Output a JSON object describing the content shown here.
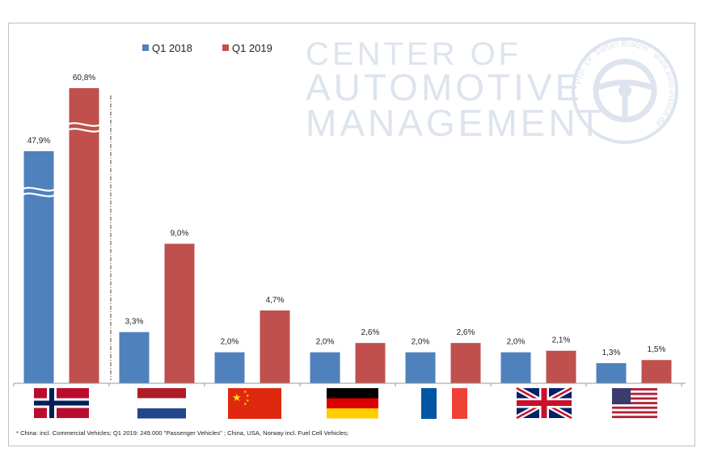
{
  "legend": [
    {
      "name": "Q1 2018",
      "color": "#4f81bd"
    },
    {
      "name": "Q1 2019",
      "color": "#c0504d"
    }
  ],
  "watermark": {
    "line1": "CENTER OF",
    "line2": "AUTOMOTIVE",
    "line3": "MANAGEMENT",
    "seal_text": "Prof. Dr. Stefan Bratzel · www.auto-institut.de"
  },
  "chart_data": {
    "type": "bar",
    "categories": [
      "Norway",
      "Netherlands",
      "China",
      "Germany",
      "France",
      "United Kingdom",
      "USA"
    ],
    "category_icons": [
      "norway-flag-icon",
      "netherlands-flag-icon",
      "china-flag-icon",
      "germany-flag-icon",
      "france-flag-icon",
      "uk-flag-icon",
      "usa-flag-icon"
    ],
    "series": [
      {
        "name": "Q1 2018",
        "color": "#4f81bd",
        "values": [
          47.9,
          3.3,
          2.0,
          2.0,
          2.0,
          2.0,
          1.3
        ],
        "labels": [
          "47,9%",
          "3,3%",
          "2,0%",
          "2,0%",
          "2,0%",
          "2,0%",
          "1,3%"
        ]
      },
      {
        "name": "Q1 2019",
        "color": "#c0504d",
        "values": [
          60.8,
          9.0,
          4.7,
          2.6,
          2.6,
          2.1,
          1.5
        ],
        "labels": [
          "60,8%",
          "9,0%",
          "4,7%",
          "2,6%",
          "2,6%",
          "2,1%",
          "1,5%"
        ]
      }
    ],
    "axis_break": true,
    "grid": false,
    "legend_position": "top-left"
  },
  "footnote": "* China: incl. Commercial Vehicles; Q1 2019: 249.000 \"Passenger Vehicles\" ; China, USA, Norway incl. Fuel Cell Vehicles;"
}
